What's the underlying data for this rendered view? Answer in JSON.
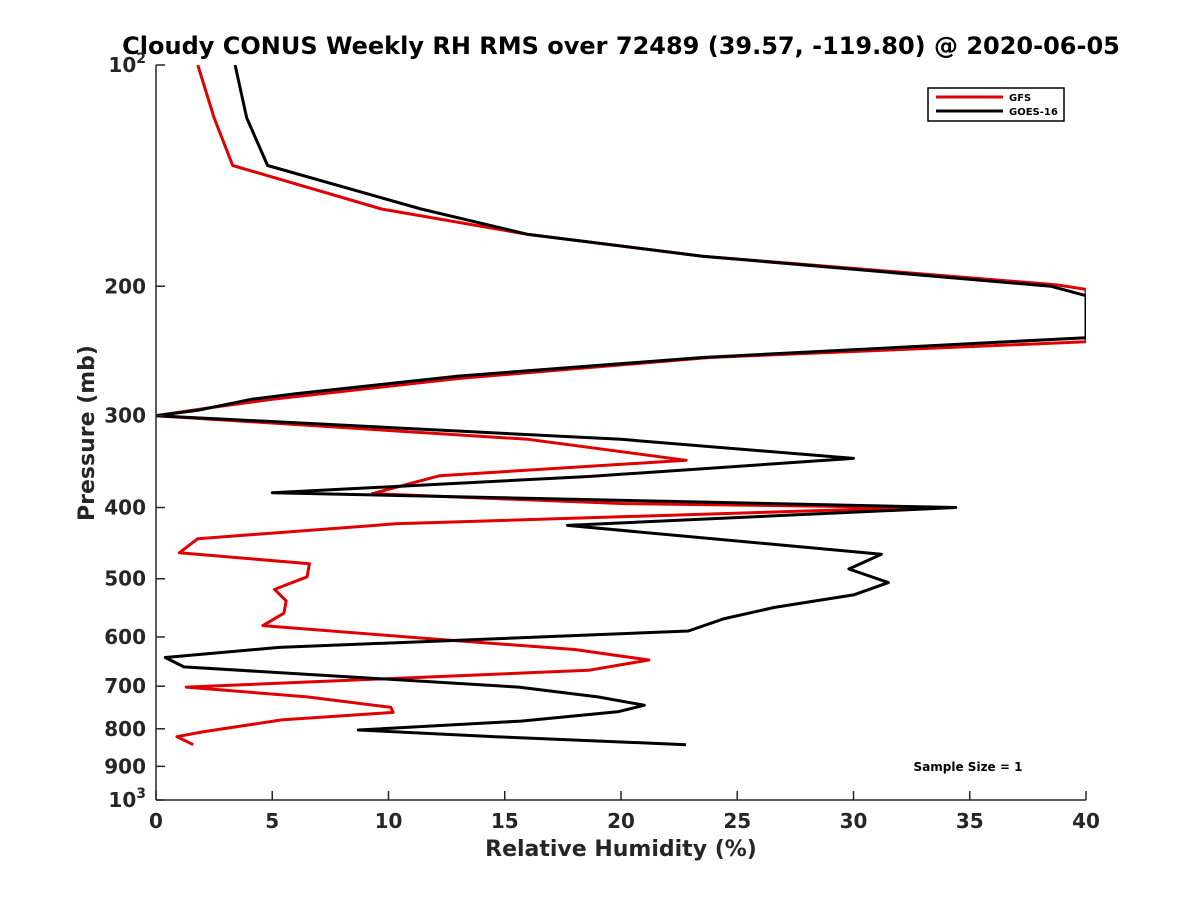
{
  "chart_data": {
    "type": "line",
    "title": "Cloudy CONUS Weekly RH RMS over 72489 (39.57, -119.80) @ 2020-06-05",
    "xlabel": "Relative Humidity (%)",
    "ylabel": "Pressure (mb)",
    "xlim": [
      0,
      40
    ],
    "ylim": [
      100,
      1000
    ],
    "y_scale": "log",
    "y_reversed": true,
    "grid": false,
    "legend_position": "top-right",
    "x_ticks": [
      "0",
      "5",
      "10",
      "15",
      "20",
      "25",
      "30",
      "35",
      "40"
    ],
    "y_ticks": [
      {
        "value": 100,
        "base": "10",
        "exp": "2"
      },
      {
        "value": 200,
        "label": "200"
      },
      {
        "value": 300,
        "label": "300"
      },
      {
        "value": 400,
        "label": "400"
      },
      {
        "value": 500,
        "label": "500"
      },
      {
        "value": 600,
        "label": "600"
      },
      {
        "value": 700,
        "label": "700"
      },
      {
        "value": 800,
        "label": "800"
      },
      {
        "value": 900,
        "label": "900"
      },
      {
        "value": 1000,
        "base": "10",
        "exp": "3"
      }
    ],
    "annotation": "Sample Size = 1",
    "series": [
      {
        "name": "GFS",
        "color": "#e00000",
        "points": [
          [
            1.8,
            100
          ],
          [
            2.5,
            118
          ],
          [
            3.3,
            137
          ],
          [
            9.7,
            157
          ],
          [
            16,
            170
          ],
          [
            23.5,
            182
          ],
          [
            38.7,
            199
          ],
          [
            40,
            202
          ],
          [
            40,
            238
          ],
          [
            23.8,
            250
          ],
          [
            13,
            267
          ],
          [
            5,
            285
          ],
          [
            2.5,
            292
          ],
          [
            0,
            300
          ],
          [
            16,
            323
          ],
          [
            22.8,
            345
          ],
          [
            12.2,
            362
          ],
          [
            9.3,
            383
          ],
          [
            20,
            395
          ],
          [
            32.8,
            400
          ],
          [
            10.3,
            421
          ],
          [
            1.8,
            441
          ],
          [
            1,
            461
          ],
          [
            6.6,
            477
          ],
          [
            6.5,
            497
          ],
          [
            5.1,
            517
          ],
          [
            5.6,
            536
          ],
          [
            5.5,
            557
          ],
          [
            4.6,
            579
          ],
          [
            12,
            604
          ],
          [
            18,
            624
          ],
          [
            21.2,
            645
          ],
          [
            18.6,
            666
          ],
          [
            1.3,
            702
          ],
          [
            6.5,
            724
          ],
          [
            10.1,
            748
          ],
          [
            10.2,
            760
          ],
          [
            5.4,
            778
          ],
          [
            2,
            808
          ],
          [
            0.9,
            820
          ],
          [
            1.6,
            841
          ]
        ]
      },
      {
        "name": "GOES-16",
        "color": "#000000",
        "points": [
          [
            3.4,
            100
          ],
          [
            3.9,
            118
          ],
          [
            4.8,
            137
          ],
          [
            11.4,
            157
          ],
          [
            16,
            170
          ],
          [
            23.5,
            182
          ],
          [
            38.5,
            200
          ],
          [
            40,
            206
          ],
          [
            40,
            235
          ],
          [
            23.5,
            250
          ],
          [
            13,
            265
          ],
          [
            6,
            280
          ],
          [
            4.1,
            285
          ],
          [
            1.8,
            295
          ],
          [
            0,
            300
          ],
          [
            20,
            323
          ],
          [
            30,
            343
          ],
          [
            18.6,
            363
          ],
          [
            5,
            382
          ],
          [
            34.4,
            400
          ],
          [
            17.7,
            423
          ],
          [
            31.2,
            463
          ],
          [
            29.8,
            485
          ],
          [
            31.5,
            506
          ],
          [
            30,
            526
          ],
          [
            26.6,
            547
          ],
          [
            24.4,
            567
          ],
          [
            22.9,
            589
          ],
          [
            5.3,
            620
          ],
          [
            0.4,
            640
          ],
          [
            1.2,
            659
          ],
          [
            15.6,
            702
          ],
          [
            19,
            724
          ],
          [
            21,
            743
          ],
          [
            19.9,
            758
          ],
          [
            15.7,
            781
          ],
          [
            8.7,
            803
          ],
          [
            14.6,
            820
          ],
          [
            22.8,
            841
          ]
        ]
      }
    ]
  }
}
